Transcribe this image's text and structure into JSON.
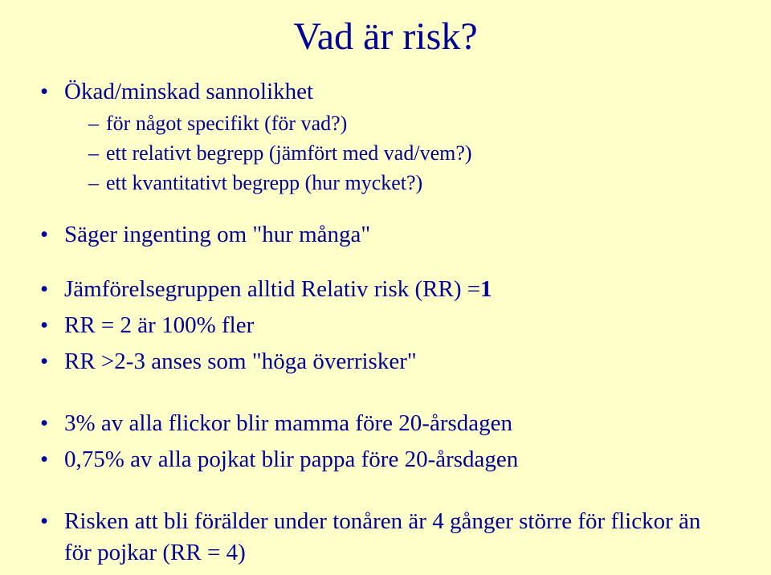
{
  "title": "Vad är risk?",
  "b1": {
    "text": "Ökad/minskad sannolikhet",
    "sub1": "för något specifikt (för vad?)",
    "sub2": "ett relativt begrepp (jämfört med vad/vem?)",
    "sub3": "ett kvantitativt begrepp (hur mycket?)"
  },
  "b2": "Säger ingenting om \"hur många\"",
  "b3_pre": "Jämförelsegruppen alltid Relativ risk (RR) =",
  "b3_bold": "1",
  "b4": "RR = 2 är 100% fler",
  "b5": "RR >2-3 anses som \"höga överrisker\"",
  "b6": "3% av alla flickor blir mamma före 20-årsdagen",
  "b7": "0,75% av alla pojkat blir pappa före 20-årsdagen",
  "b8": "Risken att bli förälder under tonåren är 4 gånger större för flickor än för pojkar (RR = 4)"
}
